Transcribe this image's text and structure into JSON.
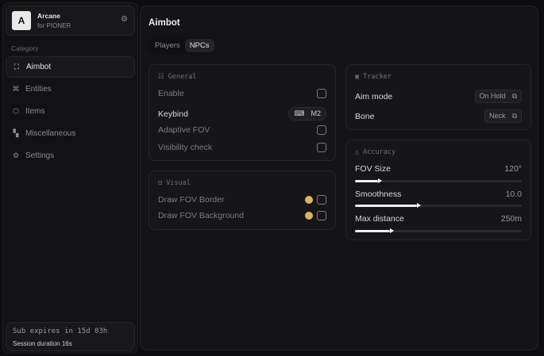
{
  "app": {
    "name": "Arcane",
    "subtitle": "for PIONER",
    "logo_letter": "A"
  },
  "sidebar": {
    "category_label": "Category",
    "items": [
      {
        "label": "Aimbot",
        "icon": "crosshair-icon",
        "active": true
      },
      {
        "label": "Entities",
        "icon": "entities-icon"
      },
      {
        "label": "Items",
        "icon": "box-icon"
      },
      {
        "label": "Miscellaneous",
        "icon": "grid-icon"
      },
      {
        "label": "Settings",
        "icon": "gear-icon"
      }
    ]
  },
  "footer": {
    "sub": "Sub expires in 15d 03h",
    "session": "Session duration 16s"
  },
  "page": {
    "title": "Aimbot",
    "tabs": [
      {
        "label": "Players"
      },
      {
        "label": "NPCs",
        "active": true
      }
    ]
  },
  "general": {
    "title": "General",
    "enable": "Enable",
    "keybind": "Keybind",
    "keybind_value": "M2",
    "adaptive": "Adaptive FOV",
    "visibility": "Visibility check"
  },
  "visual": {
    "title": "Visual",
    "border": "Draw FOV Border",
    "background": "Draw FOV Background",
    "color": "#d9b45e"
  },
  "tracker": {
    "title": "Tracker",
    "aim_mode": "Aim mode",
    "aim_mode_value": "On Hold",
    "bone": "Bone",
    "bone_value": "Neck"
  },
  "accuracy": {
    "title": "Accuracy",
    "sliders": [
      {
        "label": "FOV Size",
        "value": "120°",
        "fraction": 0.14
      },
      {
        "label": "Smoothness",
        "value": "10.0",
        "fraction": 0.37
      },
      {
        "label": "Max distance",
        "value": "250m",
        "fraction": 0.21
      }
    ]
  }
}
